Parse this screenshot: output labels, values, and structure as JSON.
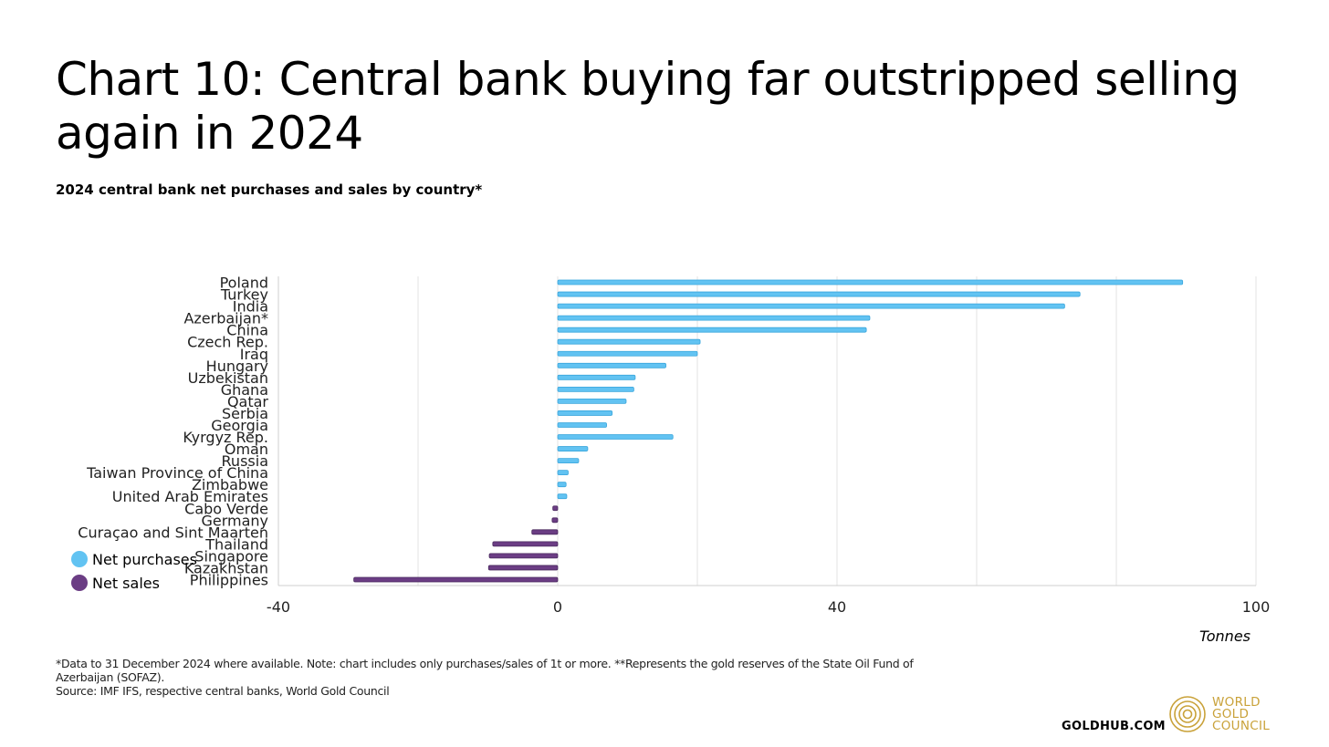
{
  "header": {
    "title": "Chart 10: Central bank buying far outstripped selling again in 2024",
    "subtitle": "2024 central bank net purchases and sales by country*"
  },
  "legend": {
    "items": [
      {
        "label": "Net purchases",
        "color": "#62c3f2"
      },
      {
        "label": "Net sales",
        "color": "#6b3d84"
      }
    ]
  },
  "unit_label": "Tonnes",
  "footnote": {
    "line1": "*Data to 31 December 2024 where available. Note: chart includes only purchases/sales of 1t or more. **Represents the gold reserves of the State Oil Fund of Azerbaijan (SOFAZ).",
    "source": "Source: IMF IFS, respective central banks, World Gold Council"
  },
  "footer": {
    "site": "GOLDHUB.COM",
    "logo_lines": [
      "WORLD",
      "GOLD",
      "COUNCIL"
    ]
  },
  "chart_data": {
    "type": "bar",
    "orientation": "horizontal",
    "categories": [
      "Poland",
      "Turkey",
      "India",
      "Azerbaijan*",
      "China",
      "Czech Rep.",
      "Iraq",
      "Hungary",
      "Uzbekistan",
      "Ghana",
      "Qatar",
      "Serbia",
      "Georgia",
      "Kyrgyz Rep.",
      "Oman",
      "Russia",
      "Taiwan Province of China",
      "Zimbabwe",
      "United Arab Emirates",
      "Cabo Verde",
      "Germany",
      "Curaçao and Sint Maarten",
      "Thailand",
      "Singapore",
      "Kazakhstan",
      "Philippines"
    ],
    "values": [
      89.5,
      74.8,
      72.6,
      44.7,
      44.2,
      20.4,
      20.0,
      15.5,
      11.1,
      10.9,
      9.8,
      7.8,
      7.0,
      16.5,
      4.3,
      3.0,
      1.5,
      1.2,
      1.3,
      -0.7,
      -0.8,
      -3.7,
      -9.3,
      -9.8,
      -9.9,
      -29.2
    ],
    "colors": {
      "positive": "#62c3f2",
      "negative": "#6b3d84",
      "positive_edge": "#3aa6dc",
      "negative_edge": "#4a2a5e"
    },
    "x_ticks": [
      {
        "value": -40,
        "label": "-40"
      },
      {
        "value": -20,
        "label": ""
      },
      {
        "value": 0,
        "label": "0"
      },
      {
        "value": 20,
        "label": ""
      },
      {
        "value": 40,
        "label": "40"
      },
      {
        "value": 60,
        "label": ""
      },
      {
        "value": 80,
        "label": ""
      },
      {
        "value": 100,
        "label": "100"
      }
    ],
    "xlim": [
      -40,
      100
    ],
    "xlabel": "Tonnes",
    "grid": "vertical",
    "legend_position": "bottom-left"
  }
}
